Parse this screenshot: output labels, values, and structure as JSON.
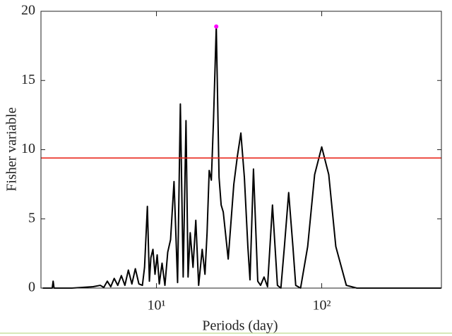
{
  "chart_data": {
    "type": "line",
    "xlabel": "Periods (day)",
    "ylabel": "Fisher variable",
    "xscale": "log",
    "xlim": [
      2,
      530
    ],
    "ylim": [
      0,
      20
    ],
    "xticks": [
      {
        "value": 10,
        "label": "10¹"
      },
      {
        "value": 100,
        "label": "10²"
      }
    ],
    "yticks": [
      0,
      5,
      10,
      15,
      20
    ],
    "series": [
      {
        "color": "#000000",
        "x": [
          2.05,
          2.34,
          2.37,
          2.4,
          3.08,
          4.14,
          4.57,
          4.8,
          5.04,
          5.29,
          5.55,
          5.83,
          6.13,
          6.44,
          6.76,
          7.1,
          7.45,
          7.83,
          8.22,
          8.47,
          8.81,
          9.06,
          9.25,
          9.52,
          9.8,
          10.1,
          10.4,
          10.81,
          11.25,
          11.7,
          12.17,
          12.77,
          13.42,
          13.95,
          14.51,
          15.09,
          15.53,
          16.0,
          16.64,
          17.3,
          18.0,
          18.91,
          19.66,
          20.24,
          20.85,
          21.48,
          22.12,
          23.01,
          23.92,
          24.63,
          25.36,
          27.17,
          29.38,
          30.85,
          32.42,
          34.04,
          35.73,
          36.81,
          38.64,
          41.01,
          42.66,
          44.78,
          46.99,
          50.35,
          53.95,
          56.61,
          59.46,
          63.1,
          66.94,
          69.61,
          74.49,
          82.22,
          90.6,
          100,
          110.3,
          121.7,
          140.9,
          163.2,
          528
        ],
        "values": [
          0,
          0,
          0.5,
          0,
          0,
          0.1,
          0.2,
          0.05,
          0.5,
          0.1,
          0.7,
          0.2,
          0.9,
          0.2,
          1.3,
          0.3,
          1.4,
          0.3,
          0.2,
          1.5,
          5.9,
          0.5,
          2.2,
          2.8,
          1.0,
          2.4,
          0.3,
          1.8,
          0.2,
          2.6,
          3.5,
          7.7,
          0.4,
          13.3,
          0.8,
          12.1,
          0.8,
          4.0,
          1.5,
          4.9,
          0.2,
          2.8,
          1.0,
          4.0,
          8.5,
          7.8,
          12,
          18.9,
          8,
          6,
          5.5,
          2.1,
          7.5,
          9.5,
          11.2,
          8,
          3,
          0.6,
          8.6,
          0.5,
          0.2,
          0.8,
          0.1,
          6.0,
          0.2,
          0,
          3,
          6.9,
          3,
          0.2,
          0,
          3,
          8.2,
          10.2,
          8.2,
          3,
          0.2,
          0,
          0
        ]
      }
    ],
    "threshold": {
      "value": 9.4,
      "color": "#e8251a"
    },
    "peak": {
      "x": 23.01,
      "y": 18.9,
      "color": "#ff00ff"
    }
  }
}
